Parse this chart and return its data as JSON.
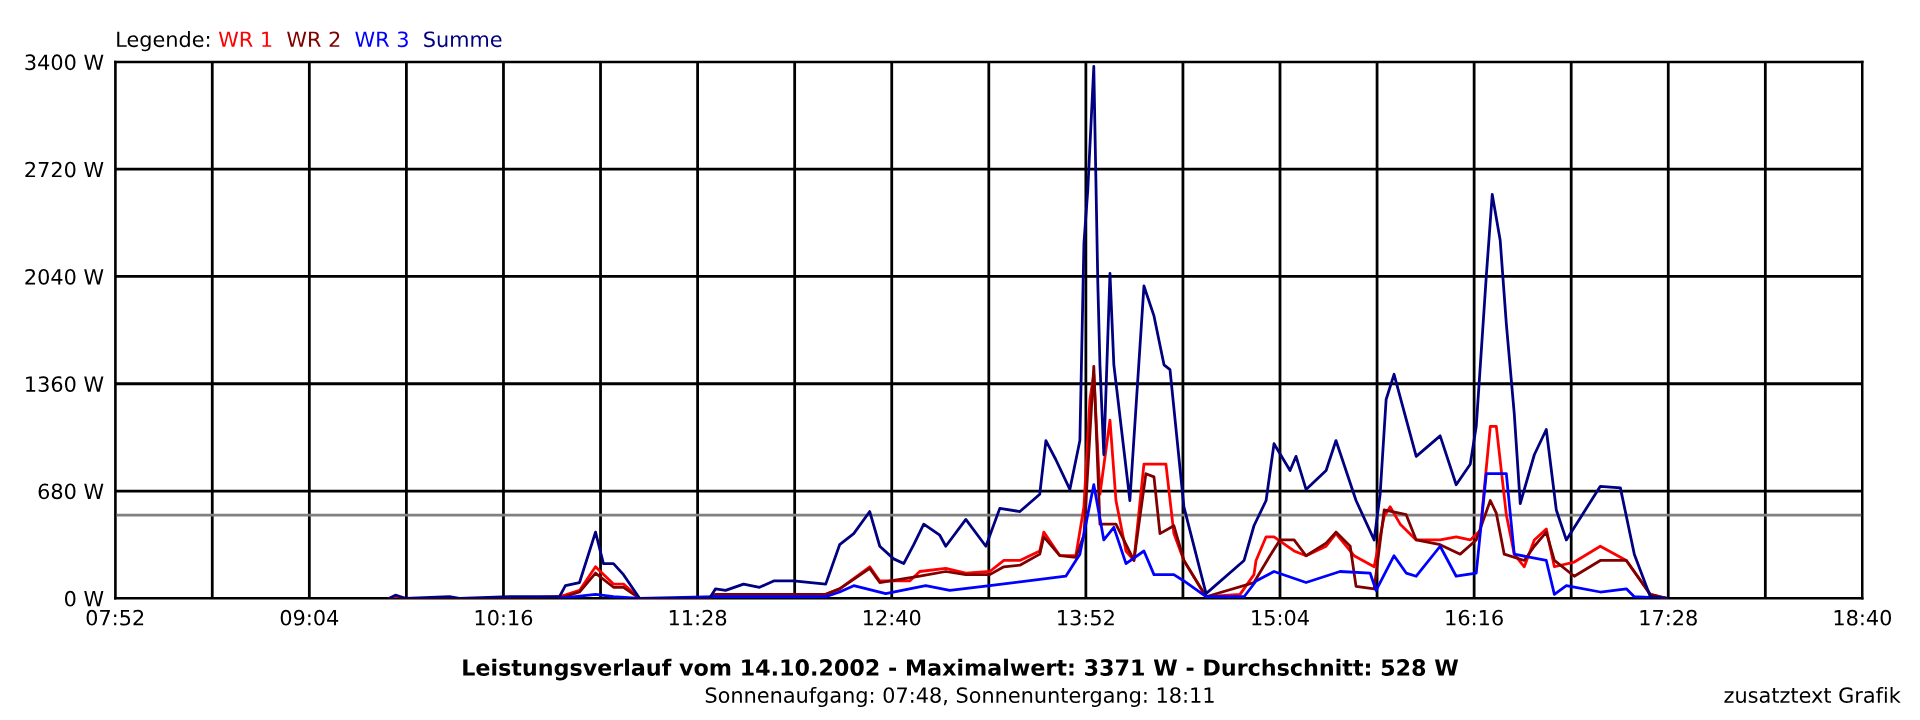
{
  "chart_data": {
    "type": "line",
    "title": "Leistungsverlauf vom 14.10.2002 - Maximalwert: 3371 W - Durchschnitt: 528 W",
    "subtitle": "Sonnenaufgang: 07:48, Sonnenuntergang: 18:11",
    "legend_title": "Legende:",
    "annotations": [
      "zusatztext Grafik"
    ],
    "legend": "top left",
    "grid": true,
    "marker": "none",
    "line_style": "solid",
    "xlim": [
      7.867,
      18.667
    ],
    "xticks": [
      {
        "value": 7.867,
        "label": "07:52"
      },
      {
        "value": 8.467,
        "label": null
      },
      {
        "value": 9.067,
        "label": "09:04"
      },
      {
        "value": 9.667,
        "label": null
      },
      {
        "value": 10.267,
        "label": "10:16"
      },
      {
        "value": 10.867,
        "label": null
      },
      {
        "value": 11.467,
        "label": "11:28"
      },
      {
        "value": 12.067,
        "label": null
      },
      {
        "value": 12.667,
        "label": "12:40"
      },
      {
        "value": 13.267,
        "label": null
      },
      {
        "value": 13.867,
        "label": "13:52"
      },
      {
        "value": 14.467,
        "label": null
      },
      {
        "value": 15.067,
        "label": "15:04"
      },
      {
        "value": 15.667,
        "label": null
      },
      {
        "value": 16.267,
        "label": "16:16"
      },
      {
        "value": 16.867,
        "label": null
      },
      {
        "value": 17.467,
        "label": "17:28"
      },
      {
        "value": 18.067,
        "label": null
      },
      {
        "value": 18.667,
        "label": "18:40"
      }
    ],
    "ylim": [
      0,
      3400
    ],
    "yticks": [
      {
        "value": 0,
        "label": "0 W"
      },
      {
        "value": 680,
        "label": "680 W"
      },
      {
        "value": 1360,
        "label": "1360 W"
      },
      {
        "value": 2040,
        "label": "2040 W"
      },
      {
        "value": 2720,
        "label": "2720 W"
      },
      {
        "value": 3400,
        "label": "3400 W"
      }
    ],
    "ref_lines": [
      {
        "axis": "y",
        "value": 528,
        "color": "#808080"
      }
    ],
    "series": [
      {
        "name": "WR 1",
        "color": "#ff0000",
        "x": [
          9.562,
          9.599,
          9.661,
          10.304,
          10.613,
          10.737,
          10.836,
          10.947,
          11.009,
          11.108,
          11.541,
          11.578,
          12.259,
          12.345,
          12.531,
          12.593,
          12.778,
          12.84,
          13.001,
          13.125,
          13.273,
          13.36,
          13.459,
          13.582,
          13.607,
          13.706,
          13.805,
          13.855,
          13.892,
          13.916,
          13.954,
          14.016,
          14.053,
          14.115,
          14.164,
          14.226,
          14.362,
          14.411,
          14.473,
          14.61,
          14.82,
          14.906,
          14.919,
          14.981,
          15.03,
          15.154,
          15.228,
          15.352,
          15.413,
          15.525,
          15.649,
          15.711,
          15.748,
          15.81,
          15.909,
          16.057,
          16.156,
          16.243,
          16.305,
          16.367,
          16.404,
          16.466,
          16.515,
          16.577,
          16.639,
          16.713,
          16.763,
          16.886,
          17.047,
          17.208,
          17.356,
          17.455
        ],
        "values": [
          0,
          10,
          0,
          0,
          10,
          50,
          200,
          90,
          90,
          0,
          0,
          25,
          25,
          60,
          200,
          110,
          110,
          170,
          190,
          160,
          170,
          240,
          240,
          300,
          420,
          270,
          270,
          580,
          1260,
          1420,
          660,
          1130,
          620,
          300,
          240,
          850,
          850,
          410,
          240,
          10,
          25,
          150,
          240,
          390,
          390,
          300,
          270,
          330,
          410,
          270,
          200,
          520,
          580,
          470,
          370,
          370,
          390,
          370,
          430,
          1090,
          1090,
          530,
          280,
          200,
          370,
          440,
          200,
          230,
          330,
          240,
          25,
          0
        ]
      },
      {
        "name": "WR 2",
        "color": "#800000",
        "x": [
          10.613,
          10.737,
          10.836,
          10.947,
          11.009,
          11.108,
          11.541,
          11.578,
          12.259,
          12.345,
          12.531,
          12.593,
          12.84,
          13.001,
          13.125,
          13.273,
          13.36,
          13.459,
          13.582,
          13.607,
          13.706,
          13.805,
          13.855,
          13.892,
          13.916,
          13.954,
          14.053,
          14.164,
          14.238,
          14.288,
          14.325,
          14.411,
          14.473,
          14.61,
          14.906,
          15.005,
          15.067,
          15.154,
          15.228,
          15.352,
          15.413,
          15.501,
          15.537,
          15.649,
          15.711,
          15.847,
          15.909,
          16.057,
          16.181,
          16.28,
          16.367,
          16.404,
          16.453,
          16.577,
          16.639,
          16.713,
          16.763,
          16.886,
          17.047,
          17.208,
          17.356,
          17.455
        ],
        "values": [
          0,
          40,
          160,
          70,
          70,
          0,
          0,
          25,
          25,
          60,
          190,
          100,
          140,
          170,
          150,
          150,
          200,
          210,
          280,
          390,
          270,
          260,
          400,
          1040,
          1470,
          470,
          470,
          240,
          790,
          770,
          410,
          460,
          240,
          10,
          100,
          270,
          370,
          370,
          270,
          350,
          420,
          330,
          76,
          60,
          560,
          530,
          370,
          340,
          280,
          370,
          620,
          540,
          280,
          240,
          330,
          420,
          240,
          140,
          240,
          240,
          25,
          0
        ]
      },
      {
        "name": "WR 3",
        "color": "#0000ff",
        "x": [
          10.613,
          10.836,
          10.947,
          11.108,
          11.578,
          12.259,
          12.345,
          12.432,
          12.63,
          12.877,
          13.026,
          13.273,
          13.743,
          13.83,
          13.916,
          13.978,
          14.04,
          14.115,
          14.226,
          14.288,
          14.411,
          14.473,
          14.61,
          14.845,
          14.919,
          15.03,
          15.228,
          15.438,
          15.624,
          15.661,
          15.772,
          15.847,
          15.909,
          16.057,
          16.156,
          16.28,
          16.342,
          16.466,
          16.515,
          16.713,
          16.763,
          16.837,
          17.047,
          17.208,
          17.257,
          17.455
        ],
        "values": [
          0,
          25,
          10,
          0,
          10,
          10,
          40,
          80,
          30,
          80,
          50,
          80,
          140,
          280,
          720,
          370,
          450,
          220,
          300,
          150,
          150,
          110,
          10,
          10,
          110,
          170,
          100,
          170,
          160,
          50,
          270,
          160,
          140,
          330,
          140,
          160,
          790,
          790,
          280,
          240,
          25,
          80,
          40,
          60,
          10,
          0
        ]
      },
      {
        "name": "Summe",
        "color": "#000080",
        "x": [
          9.562,
          9.599,
          9.661,
          9.933,
          9.995,
          10.304,
          10.613,
          10.65,
          10.737,
          10.836,
          10.885,
          10.947,
          11.009,
          11.108,
          11.541,
          11.578,
          11.64,
          11.751,
          11.85,
          11.937,
          12.061,
          12.259,
          12.345,
          12.432,
          12.531,
          12.593,
          12.679,
          12.741,
          12.803,
          12.865,
          12.964,
          13.001,
          13.125,
          13.249,
          13.335,
          13.459,
          13.582,
          13.62,
          13.681,
          13.768,
          13.83,
          13.855,
          13.879,
          13.916,
          13.941,
          13.954,
          13.978,
          14.016,
          14.04,
          14.139,
          14.226,
          14.288,
          14.35,
          14.387,
          14.473,
          14.61,
          14.845,
          14.906,
          14.981,
          15.03,
          15.129,
          15.166,
          15.228,
          15.352,
          15.413,
          15.537,
          15.649,
          15.686,
          15.723,
          15.772,
          15.909,
          16.057,
          16.156,
          16.243,
          16.28,
          16.342,
          16.379,
          16.428,
          16.466,
          16.515,
          16.552,
          16.639,
          16.713,
          16.775,
          16.837,
          17.047,
          17.171,
          17.257,
          17.356,
          17.455
        ],
        "values": [
          0,
          20,
          0,
          10,
          0,
          10,
          10,
          80,
          100,
          420,
          220,
          220,
          150,
          0,
          0,
          60,
          50,
          90,
          70,
          110,
          110,
          90,
          340,
          410,
          550,
          330,
          250,
          220,
          340,
          470,
          400,
          330,
          500,
          330,
          570,
          550,
          660,
          1000,
          880,
          690,
          1000,
          2250,
          2590,
          3371,
          1990,
          1480,
          910,
          2060,
          1480,
          620,
          1980,
          1790,
          1480,
          1450,
          580,
          30,
          240,
          460,
          620,
          980,
          810,
          900,
          690,
          810,
          1000,
          620,
          370,
          660,
          1260,
          1420,
          900,
          1030,
          720,
          850,
          1090,
          2040,
          2560,
          2270,
          1740,
          1170,
          600,
          910,
          1070,
          560,
          370,
          710,
          700,
          280,
          10,
          0
        ]
      }
    ]
  }
}
